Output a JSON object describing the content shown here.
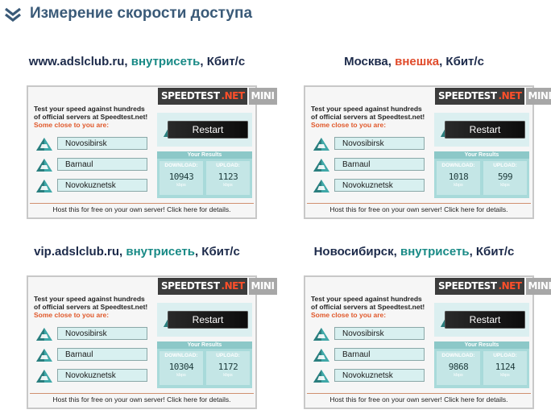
{
  "page": {
    "title": "Измерение скорости доступа",
    "icon": "double-chevron-down-icon"
  },
  "widget_common": {
    "logo_speed": "SPEEDTEST",
    "logo_net": ".NET",
    "logo_mini": "MINI",
    "invite_line1": "Test your speed against hundreds",
    "invite_line2": "of official servers at Speedtest.net!",
    "invite_close": "Some close to you are:",
    "restart": "Restart",
    "your_results": "Your Results",
    "download": "DOWNLOAD:",
    "upload": "UPLOAD:",
    "unit": "kbps",
    "footer": "Host this for free on your own server! Click here for details.",
    "servers": [
      "Novosibirsk",
      "Barnaul",
      "Novokuznetsk"
    ],
    "accent_color": "#198a86",
    "alert_color": "#e04a2a"
  },
  "widgets": [
    {
      "caption_a": "www.adslclub.ru, ",
      "caption_b": "внутрисеть",
      "caption_c": ", Кбит/с",
      "download": "10943",
      "upload": "1123"
    },
    {
      "caption_a": "Москва, ",
      "caption_b": "внешка",
      "caption_c": ", Кбит/с",
      "download": "1018",
      "upload": "599"
    },
    {
      "caption_a": "vip.adslclub.ru, ",
      "caption_b": "внутрисеть",
      "caption_c": ", Кбит/с",
      "download": "10304",
      "upload": "1172"
    },
    {
      "caption_a": "Новосибирск, ",
      "caption_b": "внутрисеть",
      "caption_c": ", Кбит/с",
      "download": "9868",
      "upload": "1124"
    }
  ]
}
